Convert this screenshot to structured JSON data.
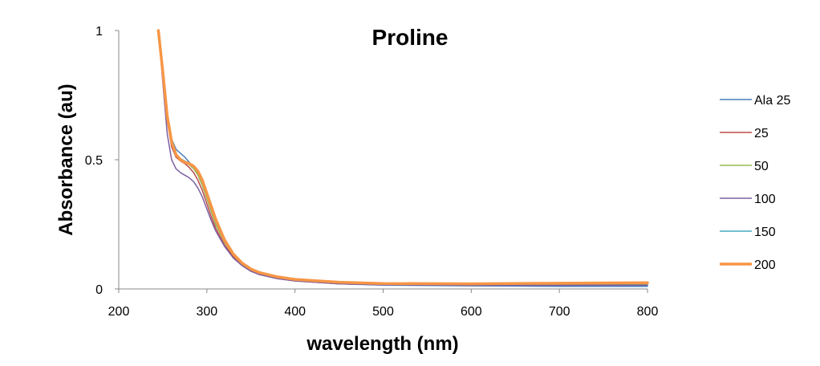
{
  "chart_data": {
    "type": "line",
    "title": "Proline",
    "xlabel": "wavelength (nm)",
    "ylabel": "Absorbance (au)",
    "xlim": [
      200,
      800
    ],
    "ylim": [
      0,
      1
    ],
    "x_ticks": [
      200,
      300,
      400,
      500,
      600,
      700,
      800
    ],
    "y_ticks": [
      0,
      0.5,
      1
    ],
    "x_tick_labels": [
      "200",
      "300",
      "400",
      "500",
      "600",
      "700",
      "800"
    ],
    "y_tick_labels": [
      "0",
      "0.5",
      "1"
    ],
    "grid": false,
    "legend_position": "right",
    "x": [
      245,
      250,
      255,
      260,
      265,
      270,
      275,
      280,
      285,
      290,
      295,
      300,
      305,
      310,
      320,
      330,
      340,
      350,
      360,
      380,
      400,
      450,
      500,
      600,
      700,
      800
    ],
    "series": [
      {
        "name": "Ala 25",
        "color": "#4A7EBB",
        "width": 1.5,
        "values": [
          1.0,
          0.84,
          0.68,
          0.58,
          0.54,
          0.525,
          0.51,
          0.49,
          0.47,
          0.44,
          0.4,
          0.35,
          0.3,
          0.25,
          0.18,
          0.13,
          0.095,
          0.072,
          0.058,
          0.042,
          0.032,
          0.02,
          0.015,
          0.012,
          0.01,
          0.01
        ]
      },
      {
        "name": "25",
        "color": "#BE4B48",
        "width": 1.5,
        "values": [
          1.0,
          0.82,
          0.65,
          0.55,
          0.51,
          0.495,
          0.485,
          0.47,
          0.45,
          0.42,
          0.38,
          0.33,
          0.28,
          0.235,
          0.17,
          0.125,
          0.092,
          0.07,
          0.056,
          0.04,
          0.031,
          0.02,
          0.016,
          0.015,
          0.015,
          0.016
        ]
      },
      {
        "name": "50",
        "color": "#98B954",
        "width": 1.5,
        "values": [
          1.0,
          0.83,
          0.66,
          0.56,
          0.515,
          0.5,
          0.49,
          0.48,
          0.465,
          0.44,
          0.4,
          0.35,
          0.3,
          0.25,
          0.18,
          0.13,
          0.096,
          0.074,
          0.06,
          0.044,
          0.034,
          0.023,
          0.018,
          0.017,
          0.018,
          0.019
        ]
      },
      {
        "name": "100",
        "color": "#7D60A0",
        "width": 1.5,
        "values": [
          1.0,
          0.8,
          0.6,
          0.5,
          0.465,
          0.45,
          0.44,
          0.43,
          0.415,
          0.39,
          0.355,
          0.31,
          0.265,
          0.225,
          0.165,
          0.12,
          0.09,
          0.068,
          0.055,
          0.04,
          0.031,
          0.02,
          0.016,
          0.014,
          0.014,
          0.015
        ]
      },
      {
        "name": "150",
        "color": "#46AAC5",
        "width": 1.5,
        "values": [
          1.0,
          0.83,
          0.665,
          0.565,
          0.52,
          0.505,
          0.495,
          0.485,
          0.47,
          0.45,
          0.415,
          0.365,
          0.315,
          0.265,
          0.19,
          0.137,
          0.1,
          0.076,
          0.061,
          0.045,
          0.035,
          0.024,
          0.019,
          0.018,
          0.02,
          0.021
        ]
      },
      {
        "name": "200",
        "color": "#F79646",
        "width": 3.5,
        "values": [
          1.0,
          0.84,
          0.67,
          0.57,
          0.52,
          0.5,
          0.49,
          0.485,
          0.475,
          0.455,
          0.42,
          0.37,
          0.32,
          0.27,
          0.19,
          0.135,
          0.1,
          0.077,
          0.063,
          0.047,
          0.037,
          0.026,
          0.021,
          0.02,
          0.022,
          0.024
        ]
      }
    ]
  }
}
